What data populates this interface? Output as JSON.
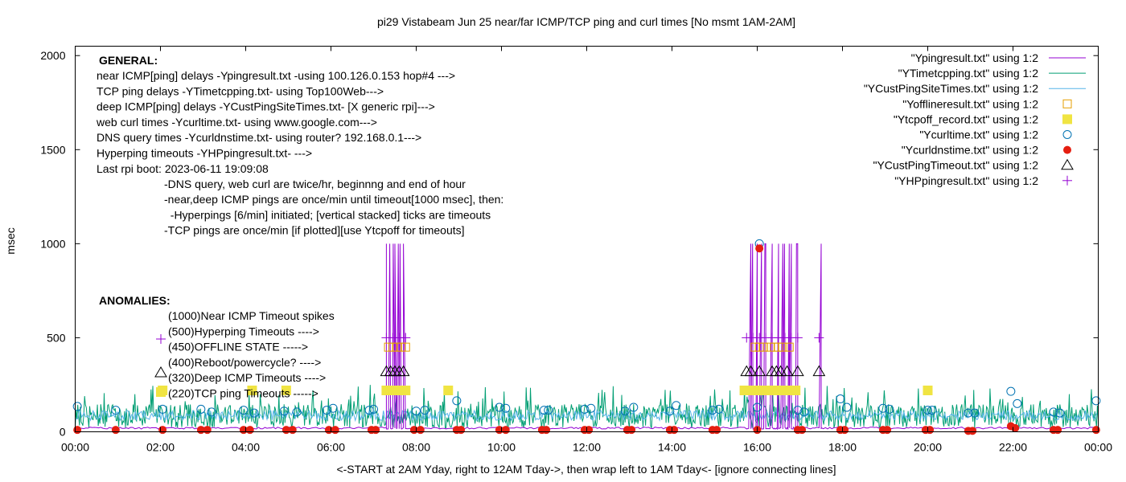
{
  "chart_data": {
    "type": "line",
    "title": "pi29 Vistabeam Jun 25  near/far ICMP/TCP ping and curl times [No msmt 1AM-2AM]",
    "xlabel": "<-START at 2AM Yday, right to 12AM Tday->, then wrap left to 1AM Tday<- [ignore connecting lines]",
    "ylabel": "msec",
    "xlim": [
      0,
      24
    ],
    "ylim": [
      0,
      2050
    ],
    "grid": false,
    "legend_position": "top-right",
    "x_ticks": [
      {
        "value": 0,
        "label": "00:00"
      },
      {
        "value": 2,
        "label": "02:00"
      },
      {
        "value": 4,
        "label": "04:00"
      },
      {
        "value": 6,
        "label": "06:00"
      },
      {
        "value": 8,
        "label": "08:00"
      },
      {
        "value": 10,
        "label": "10:00"
      },
      {
        "value": 12,
        "label": "12:00"
      },
      {
        "value": 14,
        "label": "14:00"
      },
      {
        "value": 16,
        "label": "16:00"
      },
      {
        "value": 18,
        "label": "18:00"
      },
      {
        "value": 20,
        "label": "20:00"
      },
      {
        "value": 22,
        "label": "22:00"
      },
      {
        "value": 24,
        "label": "00:00"
      }
    ],
    "y_ticks": [
      {
        "value": 0,
        "label": "0"
      },
      {
        "value": 500,
        "label": "500"
      },
      {
        "value": 1000,
        "label": "1000"
      },
      {
        "value": 1500,
        "label": "1500"
      },
      {
        "value": 2000,
        "label": "2000"
      }
    ],
    "legend": [
      {
        "label": "\"Ypingresult.txt\" using 1:2",
        "style": "line",
        "color": "#9400d3"
      },
      {
        "label": "\"YTimetcpping.txt\" using 1:2",
        "style": "line",
        "color": "#009e73"
      },
      {
        "label": "\"YCustPingSiteTimes.txt\" using 1:2",
        "style": "line",
        "color": "#56b4e9"
      },
      {
        "label": "\"Yofflineresult.txt\" using 1:2",
        "style": "open-square",
        "color": "#e69f00"
      },
      {
        "label": "\"Ytcpoff_record.txt\" using 1:2",
        "style": "filled-square",
        "color": "#f0e442"
      },
      {
        "label": "\"Ycurltime.txt\" using 1:2",
        "style": "open-circle",
        "color": "#0072b2"
      },
      {
        "label": "\"Ycurldnstime.txt\" using 1:2",
        "style": "filled-circle",
        "color": "#e51e10"
      },
      {
        "label": "\"YCustPingTimeout.txt\" using 1:2",
        "style": "open-triangle",
        "color": "#000000"
      },
      {
        "label": "\"YHPpingresult.txt\" using 1:2",
        "style": "plus",
        "color": "#9400d3"
      }
    ],
    "series": [
      {
        "name": "Ypingresult.txt",
        "type": "line",
        "color": "#9400d3",
        "baseline_msec": 15,
        "spikes_1000": [
          [
            7.3,
            7.7
          ],
          [
            15.85,
            16.0
          ],
          [
            16.1,
            16.2
          ],
          [
            16.35,
            16.5
          ],
          [
            16.6,
            16.75
          ],
          [
            16.8,
            16.95
          ],
          [
            17.5,
            17.5
          ]
        ]
      },
      {
        "name": "YTimetcpping.txt",
        "type": "line",
        "color": "#009e73",
        "range_msec": [
          20,
          250
        ]
      },
      {
        "name": "YCustPingSiteTimes.txt",
        "type": "line",
        "color": "#56b4e9",
        "range_msec": [
          60,
          150
        ]
      },
      {
        "name": "Yofflineresult.txt",
        "type": "points",
        "color": "#e69f00",
        "points": [
          [
            7.35,
            450
          ],
          [
            7.45,
            450
          ],
          [
            7.55,
            450
          ],
          [
            7.65,
            450
          ],
          [
            7.75,
            450
          ],
          [
            15.95,
            450
          ],
          [
            16.05,
            450
          ],
          [
            16.15,
            450
          ],
          [
            16.3,
            450
          ],
          [
            16.4,
            450
          ],
          [
            16.5,
            450
          ],
          [
            16.6,
            450
          ],
          [
            16.75,
            450
          ]
        ]
      },
      {
        "name": "Ytcpoff_record.txt",
        "type": "points",
        "color": "#f0e442",
        "points": [
          [
            2.05,
            220
          ],
          [
            4.15,
            220
          ],
          [
            4.95,
            220
          ],
          [
            7.3,
            220
          ],
          [
            7.45,
            220
          ],
          [
            7.6,
            220
          ],
          [
            7.75,
            220
          ],
          [
            8.75,
            220
          ],
          [
            15.7,
            220
          ],
          [
            15.85,
            220
          ],
          [
            16.0,
            220
          ],
          [
            16.15,
            220
          ],
          [
            16.3,
            220
          ],
          [
            16.45,
            220
          ],
          [
            16.6,
            220
          ],
          [
            16.75,
            220
          ],
          [
            16.9,
            220
          ],
          [
            20.0,
            220
          ]
        ]
      },
      {
        "name": "Ycurltime.txt",
        "type": "points",
        "color": "#0072b2",
        "points": [
          [
            0.05,
            135
          ],
          [
            0.95,
            115
          ],
          [
            2.05,
            120
          ],
          [
            2.95,
            120
          ],
          [
            3.2,
            105
          ],
          [
            3.95,
            115
          ],
          [
            4.2,
            100
          ],
          [
            4.9,
            110
          ],
          [
            5.2,
            105
          ],
          [
            5.9,
            115
          ],
          [
            6.05,
            125
          ],
          [
            6.9,
            115
          ],
          [
            7.0,
            120
          ],
          [
            8.0,
            110
          ],
          [
            8.2,
            115
          ],
          [
            8.95,
            165
          ],
          [
            9.95,
            130
          ],
          [
            10.1,
            125
          ],
          [
            11.0,
            115
          ],
          [
            11.1,
            115
          ],
          [
            11.95,
            120
          ],
          [
            12.1,
            125
          ],
          [
            12.9,
            110
          ],
          [
            13.1,
            130
          ],
          [
            13.95,
            110
          ],
          [
            14.1,
            140
          ],
          [
            14.95,
            115
          ],
          [
            15.1,
            120
          ],
          [
            16.0,
            130
          ],
          [
            16.05,
            1000
          ],
          [
            16.95,
            115
          ],
          [
            17.1,
            105
          ],
          [
            17.95,
            175
          ],
          [
            18.1,
            130
          ],
          [
            18.95,
            125
          ],
          [
            19.1,
            120
          ],
          [
            20.0,
            115
          ],
          [
            20.1,
            115
          ],
          [
            20.95,
            100
          ],
          [
            21.1,
            100
          ],
          [
            21.95,
            215
          ],
          [
            22.1,
            150
          ],
          [
            22.95,
            105
          ],
          [
            23.1,
            100
          ],
          [
            23.95,
            165
          ]
        ]
      },
      {
        "name": "Ycurldnstime.txt",
        "type": "points",
        "color": "#e51e10",
        "points": [
          [
            0.05,
            10
          ],
          [
            0.95,
            10
          ],
          [
            2.05,
            10
          ],
          [
            2.95,
            10
          ],
          [
            3.1,
            10
          ],
          [
            3.95,
            10
          ],
          [
            4.1,
            10
          ],
          [
            4.95,
            10
          ],
          [
            5.1,
            10
          ],
          [
            5.95,
            10
          ],
          [
            6.1,
            10
          ],
          [
            6.95,
            10
          ],
          [
            7.05,
            10
          ],
          [
            7.95,
            10
          ],
          [
            8.1,
            10
          ],
          [
            8.95,
            10
          ],
          [
            9.05,
            10
          ],
          [
            9.95,
            10
          ],
          [
            10.1,
            10
          ],
          [
            10.95,
            10
          ],
          [
            11.05,
            10
          ],
          [
            11.95,
            10
          ],
          [
            12.05,
            10
          ],
          [
            12.95,
            10
          ],
          [
            13.05,
            10
          ],
          [
            13.95,
            10
          ],
          [
            14.05,
            10
          ],
          [
            14.95,
            10
          ],
          [
            15.05,
            10
          ],
          [
            16.0,
            10
          ],
          [
            16.05,
            975
          ],
          [
            16.95,
            10
          ],
          [
            17.05,
            10
          ],
          [
            17.95,
            10
          ],
          [
            18.05,
            10
          ],
          [
            18.95,
            10
          ],
          [
            19.05,
            10
          ],
          [
            19.95,
            10
          ],
          [
            20.05,
            10
          ],
          [
            20.95,
            5
          ],
          [
            21.05,
            5
          ],
          [
            21.95,
            30
          ],
          [
            22.05,
            20
          ],
          [
            22.95,
            10
          ],
          [
            23.05,
            10
          ],
          [
            23.95,
            10
          ]
        ]
      },
      {
        "name": "YCustPingTimeout.txt",
        "type": "points",
        "color": "#000000",
        "points": [
          [
            7.3,
            320
          ],
          [
            7.4,
            320
          ],
          [
            7.5,
            320
          ],
          [
            7.6,
            320
          ],
          [
            7.7,
            320
          ],
          [
            15.75,
            320
          ],
          [
            15.85,
            320
          ],
          [
            16.05,
            320
          ],
          [
            16.35,
            320
          ],
          [
            16.45,
            320
          ],
          [
            16.55,
            320
          ],
          [
            16.7,
            320
          ],
          [
            16.95,
            320
          ],
          [
            17.45,
            320
          ]
        ]
      },
      {
        "name": "YHPpingresult.txt",
        "type": "points",
        "color": "#9400d3",
        "points": [
          [
            7.3,
            500
          ],
          [
            7.45,
            500
          ],
          [
            7.6,
            500
          ],
          [
            7.75,
            500
          ],
          [
            15.75,
            500
          ],
          [
            15.9,
            500
          ],
          [
            16.05,
            500
          ],
          [
            16.2,
            500
          ],
          [
            16.35,
            500
          ],
          [
            16.5,
            500
          ],
          [
            16.65,
            500
          ],
          [
            16.8,
            500
          ],
          [
            16.95,
            500
          ],
          [
            17.45,
            500
          ]
        ]
      }
    ],
    "annotations": {
      "general_heading": "GENERAL:",
      "general_lines": [
        "near ICMP[ping] delays -Ypingresult.txt -using 100.126.0.153 hop#4 --->",
        "TCP ping delays -YTimetcpping.txt- using Top100Web--->",
        "deep ICMP[ping] delays -YCustPingSiteTimes.txt- [X generic rpi]--->",
        "web curl times -Ycurltime.txt- using www.google.com--->",
        "DNS query times -Ycurldnstime.txt- using router? 192.168.0.1--->",
        "Hyperping timeouts -YHPpingresult.txt- --->",
        "Last rpi boot: 2023-06-11 19:09:08"
      ],
      "notes_lines": [
        "-DNS query, web curl are twice/hr, beginnng and end of hour",
        "-near,deep ICMP pings are once/min until timeout[1000 msec], then:",
        "  -Hyperpings [6/min] initiated; [vertical stacked] ticks are timeouts",
        "-TCP pings are once/min [if plotted][use Ytcpoff for timeouts]"
      ],
      "anomalies_heading": "ANOMALIES:",
      "anomalies_lines": [
        "(1000)Near ICMP Timeout spikes",
        "(500)Hyperping Timeouts ---->",
        "(450)OFFLINE STATE ----->",
        "(400)Reboot/powercycle? ---->",
        "(320)Deep ICMP Timeouts ---->",
        "(220)TCP ping Timeouts ----->"
      ]
    }
  }
}
